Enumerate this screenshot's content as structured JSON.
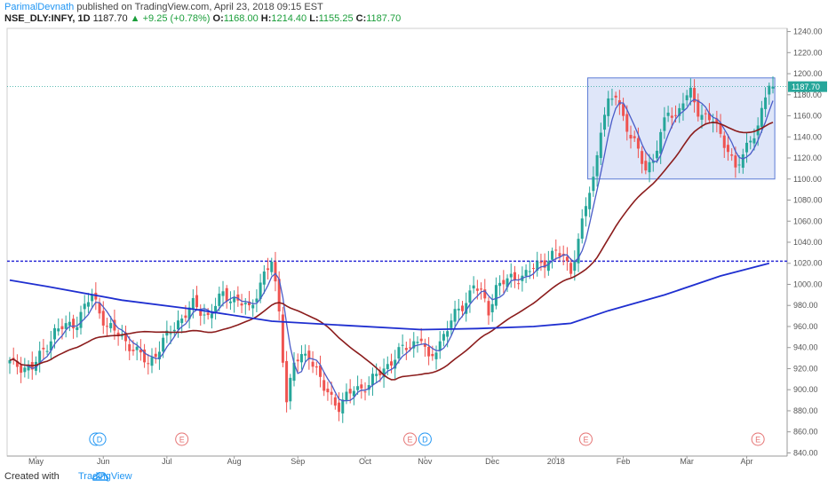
{
  "header": {
    "author": "ParimalDevnath",
    "published": "published on TradingView.com, April 23, 2018 09:15 EST",
    "symbol": "NSE_DLY:INFY, 1D",
    "last": "1187.70",
    "change": "+9.25 (+0.78%)",
    "open_label": "O:",
    "open": "1168.00",
    "high_label": "H:",
    "high": "1214.40",
    "low_label": "L:",
    "low": "1155.25",
    "close_label": "C:",
    "close": "1187.70"
  },
  "footer": {
    "created_with": "Created with",
    "brand": "TradingView"
  },
  "colors": {
    "up": "#26a69a",
    "down": "#ef5350",
    "ma_fast": "#4a5cc8",
    "ma_mid": "#8b1c1c",
    "ma_slow": "#1f2fd0",
    "support": "#2b2bd6",
    "box_fill": "#c9d5f5",
    "box_border": "#5b7bd5",
    "last_price_bg": "#26a69a",
    "event_d": "#2196f3",
    "event_e": "#e57373"
  },
  "chart_data": {
    "type": "candlestick",
    "y_ticks": [
      "840.00",
      "860.00",
      "880.00",
      "900.00",
      "920.00",
      "940.00",
      "960.00",
      "980.00",
      "1000.00",
      "1020.00",
      "1040.00",
      "1060.00",
      "1080.00",
      "1100.00",
      "1120.00",
      "1140.00",
      "1160.00",
      "1180.00",
      "1200.00",
      "1220.00",
      "1240.00"
    ],
    "ylim": [
      837,
      1243
    ],
    "x_labels": [
      "May",
      "Jun",
      "Jul",
      "Aug",
      "Sep",
      "Oct",
      "Nov",
      "Dec",
      "2018",
      "Feb",
      "Mar",
      "Apr"
    ],
    "last_price_label": "1187.70",
    "close_anchors": [
      [
        0,
        925
      ],
      [
        6,
        920
      ],
      [
        12,
        955
      ],
      [
        18,
        965
      ],
      [
        22,
        990
      ],
      [
        26,
        960
      ],
      [
        30,
        950
      ],
      [
        34,
        935
      ],
      [
        37,
        925
      ],
      [
        41,
        945
      ],
      [
        45,
        965
      ],
      [
        49,
        980
      ],
      [
        53,
        970
      ],
      [
        57,
        990
      ],
      [
        61,
        985
      ],
      [
        64,
        975
      ],
      [
        68,
        1010
      ],
      [
        70,
        1020
      ],
      [
        72,
        975
      ],
      [
        74,
        890
      ],
      [
        76,
        925
      ],
      [
        80,
        935
      ],
      [
        84,
        900
      ],
      [
        88,
        885
      ],
      [
        92,
        900
      ],
      [
        96,
        905
      ],
      [
        100,
        920
      ],
      [
        104,
        935
      ],
      [
        108,
        945
      ],
      [
        110,
        950
      ],
      [
        112,
        925
      ],
      [
        114,
        940
      ],
      [
        118,
        965
      ],
      [
        122,
        985
      ],
      [
        124,
        1000
      ],
      [
        126,
        990
      ],
      [
        128,
        975
      ],
      [
        130,
        998
      ],
      [
        134,
        1005
      ],
      [
        138,
        1010
      ],
      [
        142,
        1020
      ],
      [
        146,
        1030
      ],
      [
        148,
        1025
      ],
      [
        150,
        1015
      ],
      [
        152,
        1040
      ],
      [
        154,
        1075
      ],
      [
        156,
        1100
      ],
      [
        158,
        1150
      ],
      [
        160,
        1170
      ],
      [
        162,
        1180
      ],
      [
        164,
        1160
      ],
      [
        166,
        1140
      ],
      [
        168,
        1125
      ],
      [
        170,
        1110
      ],
      [
        172,
        1120
      ],
      [
        174,
        1140
      ],
      [
        176,
        1165
      ],
      [
        178,
        1160
      ],
      [
        180,
        1175
      ],
      [
        182,
        1180
      ],
      [
        184,
        1165
      ],
      [
        186,
        1160
      ],
      [
        188,
        1155
      ],
      [
        190,
        1140
      ],
      [
        192,
        1130
      ],
      [
        194,
        1110
      ],
      [
        196,
        1120
      ],
      [
        198,
        1140
      ],
      [
        200,
        1150
      ],
      [
        202,
        1178
      ],
      [
        203,
        1187.7
      ]
    ],
    "ma_slow": [
      [
        0,
        1004
      ],
      [
        10,
        998
      ],
      [
        30,
        985
      ],
      [
        50,
        976
      ],
      [
        70,
        965
      ],
      [
        90,
        961
      ],
      [
        110,
        957
      ],
      [
        125,
        958
      ],
      [
        140,
        960
      ],
      [
        150,
        963
      ],
      [
        160,
        975
      ],
      [
        175,
        990
      ],
      [
        190,
        1008
      ],
      [
        203,
        1020
      ]
    ],
    "support_level": 1022,
    "range_box": {
      "x_from": 154.5,
      "x_to": 204.5,
      "y_low": 1100,
      "y_high": 1196
    },
    "events": [
      {
        "x": 23,
        "label": "D",
        "kind": "d"
      },
      {
        "x": 24,
        "label": "D",
        "kind": "d"
      },
      {
        "x": 46,
        "label": "E",
        "kind": "e"
      },
      {
        "x": 107,
        "label": "E",
        "kind": "e"
      },
      {
        "x": 111,
        "label": "D",
        "kind": "d"
      },
      {
        "x": 154,
        "label": "E",
        "kind": "e"
      },
      {
        "x": 200,
        "label": "E",
        "kind": "e"
      }
    ],
    "month_positions": [
      7,
      25,
      42,
      60,
      77,
      95,
      111,
      129,
      146,
      164,
      181,
      197
    ]
  }
}
